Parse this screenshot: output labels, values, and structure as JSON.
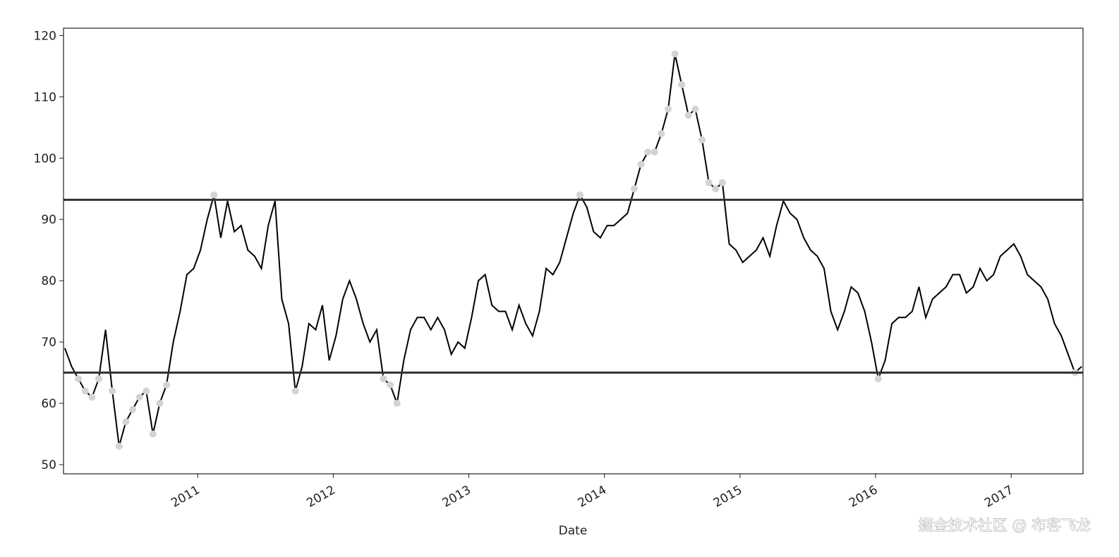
{
  "chart_data": {
    "type": "line",
    "x_label": "Date",
    "watermark": "掘金技术社区 @ 布客飞龙",
    "x": [
      2010.02,
      2010.07,
      2010.12,
      2010.17,
      2010.22,
      2010.27,
      2010.32,
      2010.37,
      2010.42,
      2010.47,
      2010.52,
      2010.57,
      2010.62,
      2010.67,
      2010.72,
      2010.77,
      2010.82,
      2010.87,
      2010.92,
      2010.97,
      2011.02,
      2011.07,
      2011.12,
      2011.17,
      2011.22,
      2011.27,
      2011.32,
      2011.37,
      2011.42,
      2011.47,
      2011.52,
      2011.57,
      2011.62,
      2011.67,
      2011.72,
      2011.77,
      2011.82,
      2011.87,
      2011.92,
      2011.97,
      2012.02,
      2012.07,
      2012.12,
      2012.17,
      2012.22,
      2012.27,
      2012.32,
      2012.37,
      2012.42,
      2012.47,
      2012.52,
      2012.57,
      2012.62,
      2012.67,
      2012.72,
      2012.77,
      2012.82,
      2012.87,
      2012.92,
      2012.97,
      2013.02,
      2013.07,
      2013.12,
      2013.17,
      2013.22,
      2013.27,
      2013.32,
      2013.37,
      2013.42,
      2013.47,
      2013.52,
      2013.57,
      2013.62,
      2013.67,
      2013.72,
      2013.77,
      2013.82,
      2013.87,
      2013.92,
      2013.97,
      2014.02,
      2014.07,
      2014.12,
      2014.17,
      2014.22,
      2014.27,
      2014.32,
      2014.37,
      2014.42,
      2014.47,
      2014.52,
      2014.57,
      2014.62,
      2014.67,
      2014.72,
      2014.77,
      2014.82,
      2014.87,
      2014.92,
      2014.97,
      2015.02,
      2015.07,
      2015.12,
      2015.17,
      2015.22,
      2015.27,
      2015.32,
      2015.37,
      2015.42,
      2015.47,
      2015.52,
      2015.57,
      2015.62,
      2015.67,
      2015.72,
      2015.77,
      2015.82,
      2015.87,
      2015.92,
      2015.97,
      2016.02,
      2016.07,
      2016.12,
      2016.17,
      2016.22,
      2016.27,
      2016.32,
      2016.37,
      2016.42,
      2016.47,
      2016.52,
      2016.57,
      2016.62,
      2016.67,
      2016.72,
      2016.77,
      2016.82,
      2016.87,
      2016.92,
      2016.97,
      2017.02,
      2017.07,
      2017.12,
      2017.17,
      2017.22,
      2017.27,
      2017.32,
      2017.37,
      2017.42,
      2017.47,
      2017.52
    ],
    "series": [
      {
        "color": "#000000",
        "marker_color": "#d3d3d3",
        "values": [
          69,
          66,
          64,
          62,
          61,
          64,
          72,
          62,
          53,
          57,
          59,
          61,
          62,
          55,
          60,
          63,
          70,
          75,
          81,
          82,
          85,
          90,
          94,
          87,
          93,
          88,
          89,
          85,
          84,
          82,
          89,
          93,
          77,
          73,
          62,
          66,
          73,
          72,
          76,
          67,
          71,
          77,
          80,
          77,
          73,
          70,
          72,
          64,
          63,
          60,
          67,
          72,
          74,
          74,
          72,
          74,
          72,
          68,
          70,
          69,
          74,
          80,
          81,
          76,
          75,
          75,
          72,
          76,
          73,
          71,
          75,
          82,
          81,
          83,
          87,
          91,
          94,
          92,
          88,
          87,
          89,
          89,
          90,
          91,
          95,
          99,
          101,
          101,
          104,
          108,
          117,
          112,
          107,
          108,
          103,
          96,
          95,
          96,
          86,
          85,
          83,
          84,
          85,
          87,
          84,
          89,
          93,
          91,
          90,
          87,
          85,
          84,
          82,
          75,
          72,
          75,
          79,
          78,
          75,
          70,
          64,
          67,
          73,
          74,
          74,
          75,
          79,
          74,
          77,
          78,
          79,
          81,
          81,
          78,
          79,
          82,
          80,
          81,
          84,
          85,
          86,
          84,
          81,
          80,
          79,
          77,
          73,
          71,
          68,
          65,
          66
        ]
      }
    ],
    "hlines": [
      93.2,
      65
    ],
    "hline_color": "#333333",
    "xlim": [
      2010.01,
      2017.53
    ],
    "ylim": [
      48.5,
      121.2
    ],
    "xticks": [
      2011,
      2012,
      2013,
      2014,
      2015,
      2016,
      2017
    ],
    "yticks": [
      50,
      60,
      70,
      80,
      90,
      100,
      110,
      120
    ]
  }
}
